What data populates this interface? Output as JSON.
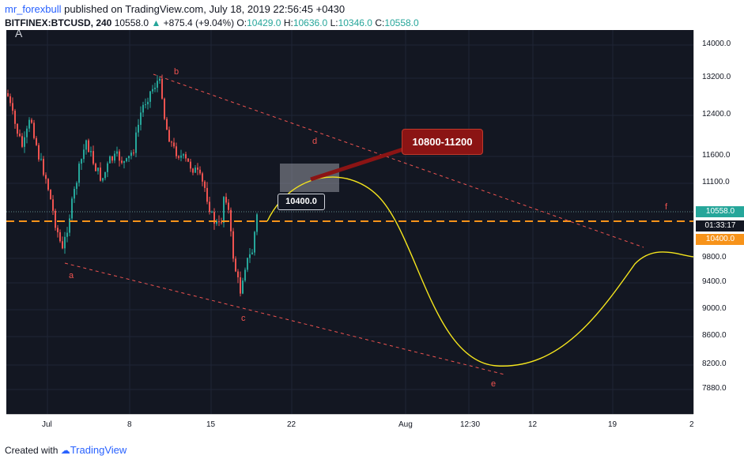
{
  "header": {
    "author": "mr_forexbull",
    "published_text": " published on TradingView.com, July 18, 2019 22:56:45 +0430"
  },
  "ticker": {
    "symbol": "BITFINEX:BTCUSD, 240",
    "price": "10558.0",
    "change": "+875.4 (+9.04%)",
    "open_label": "O:",
    "open": "10429.0",
    "high_label": "H:",
    "high": "10636.0",
    "low_label": "L:",
    "low": "10346.0",
    "close_label": "C:",
    "close": "10558.0"
  },
  "chart_corner_label": "A",
  "price_axis": {
    "ticks": [
      "14000.0",
      "13200.0",
      "12400.0",
      "11600.0",
      "11100.0",
      "10558.0",
      "01:33:17",
      "10400.0",
      "9800.0",
      "9400.0",
      "9000.0",
      "8600.0",
      "8200.0",
      "7880.0"
    ],
    "current_price": "10558.0",
    "countdown": "01:33:17",
    "level_price": "10400.0",
    "colors": {
      "current_bg": "#26a69a",
      "countdown_bg": "#131722",
      "level_bg": "#f7931a"
    }
  },
  "time_axis": {
    "ticks": [
      "Jul",
      "8",
      "15",
      "22",
      "Aug",
      "12:30",
      "12",
      "19",
      "2"
    ]
  },
  "annotations": {
    "target_zone": "10800-11200",
    "level_box": "10400.0",
    "wave_labels": [
      "a",
      "b",
      "c",
      "d",
      "e",
      "f"
    ]
  },
  "footer": {
    "created_with": "Created with",
    "brand": "TradingView"
  },
  "colors": {
    "background": "#131722",
    "bull": "#26a69a",
    "bear": "#ef5350",
    "level_line": "#f7931a",
    "projection": "#f5e51d",
    "trendline": "#ef5350"
  }
}
